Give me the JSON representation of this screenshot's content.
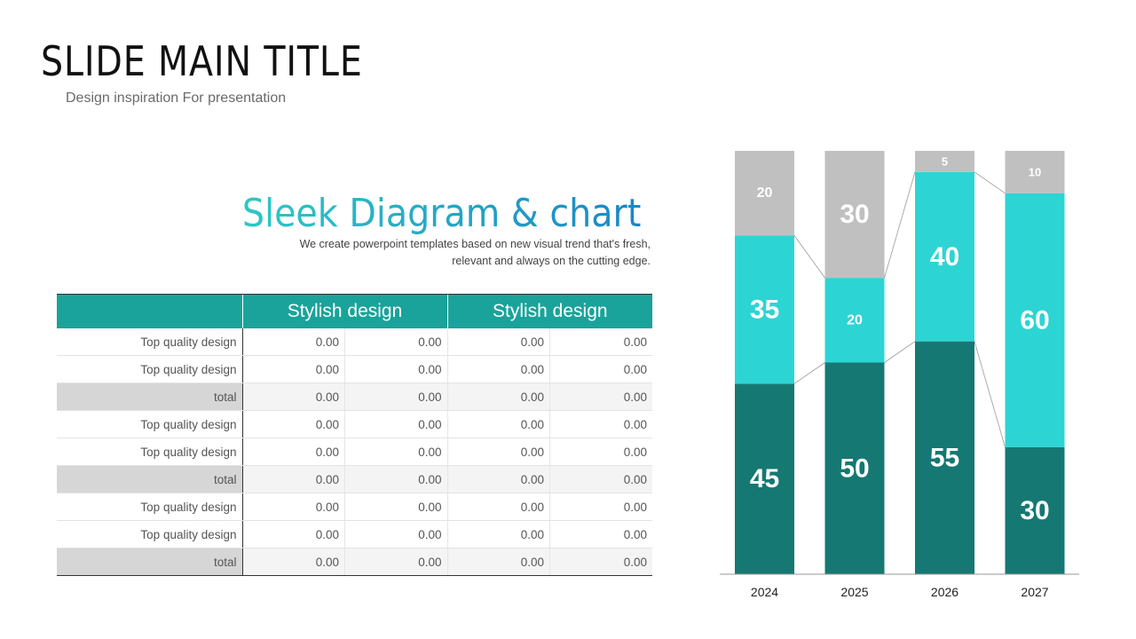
{
  "header": {
    "title": "SLIDE MAIN TITLE",
    "subtitle": "Design inspiration For presentation"
  },
  "section": {
    "title": "Sleek Diagram & chart",
    "description_line1": "We create powerpoint templates based on new visual trend that's fresh,",
    "description_line2": "relevant and always on the cutting edge."
  },
  "table": {
    "group_headers": [
      "Stylish design",
      "Stylish design"
    ],
    "rows": [
      {
        "label": "Top quality design",
        "values": [
          "0.00",
          "0.00",
          "0.00",
          "0.00"
        ],
        "total": false
      },
      {
        "label": "Top quality design",
        "values": [
          "0.00",
          "0.00",
          "0.00",
          "0.00"
        ],
        "total": false
      },
      {
        "label": "total",
        "values": [
          "0.00",
          "0.00",
          "0.00",
          "0.00"
        ],
        "total": true
      },
      {
        "label": "Top quality design",
        "values": [
          "0.00",
          "0.00",
          "0.00",
          "0.00"
        ],
        "total": false
      },
      {
        "label": "Top quality design",
        "values": [
          "0.00",
          "0.00",
          "0.00",
          "0.00"
        ],
        "total": false
      },
      {
        "label": "total",
        "values": [
          "0.00",
          "0.00",
          "0.00",
          "0.00"
        ],
        "total": true
      },
      {
        "label": "Top quality design",
        "values": [
          "0.00",
          "0.00",
          "0.00",
          "0.00"
        ],
        "total": false
      },
      {
        "label": "Top quality design",
        "values": [
          "0.00",
          "0.00",
          "0.00",
          "0.00"
        ],
        "total": false
      },
      {
        "label": "total",
        "values": [
          "0.00",
          "0.00",
          "0.00",
          "0.00"
        ],
        "total": true
      }
    ]
  },
  "chart_data": {
    "type": "bar",
    "stacked": true,
    "percent_stacked": true,
    "categories": [
      "2024",
      "2025",
      "2026",
      "2027"
    ],
    "series": [
      {
        "values": [
          45,
          50,
          55,
          30
        ],
        "color": "#157873"
      },
      {
        "values": [
          35,
          20,
          40,
          60
        ],
        "color": "#2dd4d4"
      },
      {
        "values": [
          20,
          30,
          5,
          10
        ],
        "color": "#c0c0c0"
      }
    ],
    "ylim": [
      0,
      100
    ],
    "grid": false,
    "legend": "none",
    "connector_lines": true
  },
  "colors": {
    "accent": "#1aa39a",
    "title_gradient": [
      "#2ec8c4",
      "#1a86c7"
    ]
  }
}
